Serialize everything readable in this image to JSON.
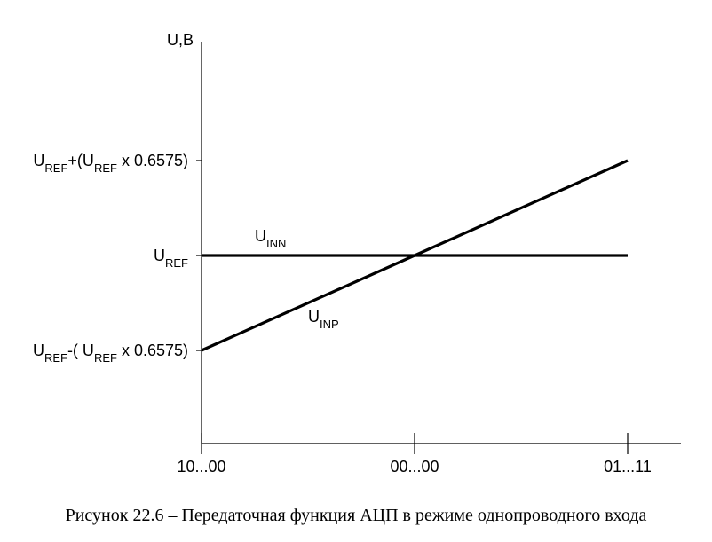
{
  "chart_data": {
    "type": "line",
    "title": "",
    "ylabel": "U,B",
    "x_ticks": [
      "10...00",
      "00...00",
      "01...11"
    ],
    "y_ticks": [
      {
        "main": "U",
        "sub": "REF",
        "mid": "+(U",
        "sub2": "REF",
        "tail": "  x 0.6575)",
        "value": 1.6575
      },
      {
        "main": "U",
        "sub": "REF",
        "value": 1.0
      },
      {
        "main": "U",
        "sub": "REF",
        "mid": "-( U",
        "sub2": "REF",
        "tail": "  x 0.6575)",
        "value": 0.3425
      }
    ],
    "ylim": [
      -0.3,
      2.9
    ],
    "series": [
      {
        "main": "U",
        "sub": "INN",
        "x": [
          "10...00",
          "01...11"
        ],
        "values": [
          1.0,
          1.0
        ]
      },
      {
        "main": "U",
        "sub": "INP",
        "x": [
          "10...00",
          "00...00",
          "01...11"
        ],
        "values": [
          0.3425,
          1.0,
          1.6575
        ]
      }
    ],
    "grid": false,
    "legend": "none"
  },
  "caption": "Рисунок 22.6 – Передаточная функция АЦП в режиме однопроводного входа"
}
